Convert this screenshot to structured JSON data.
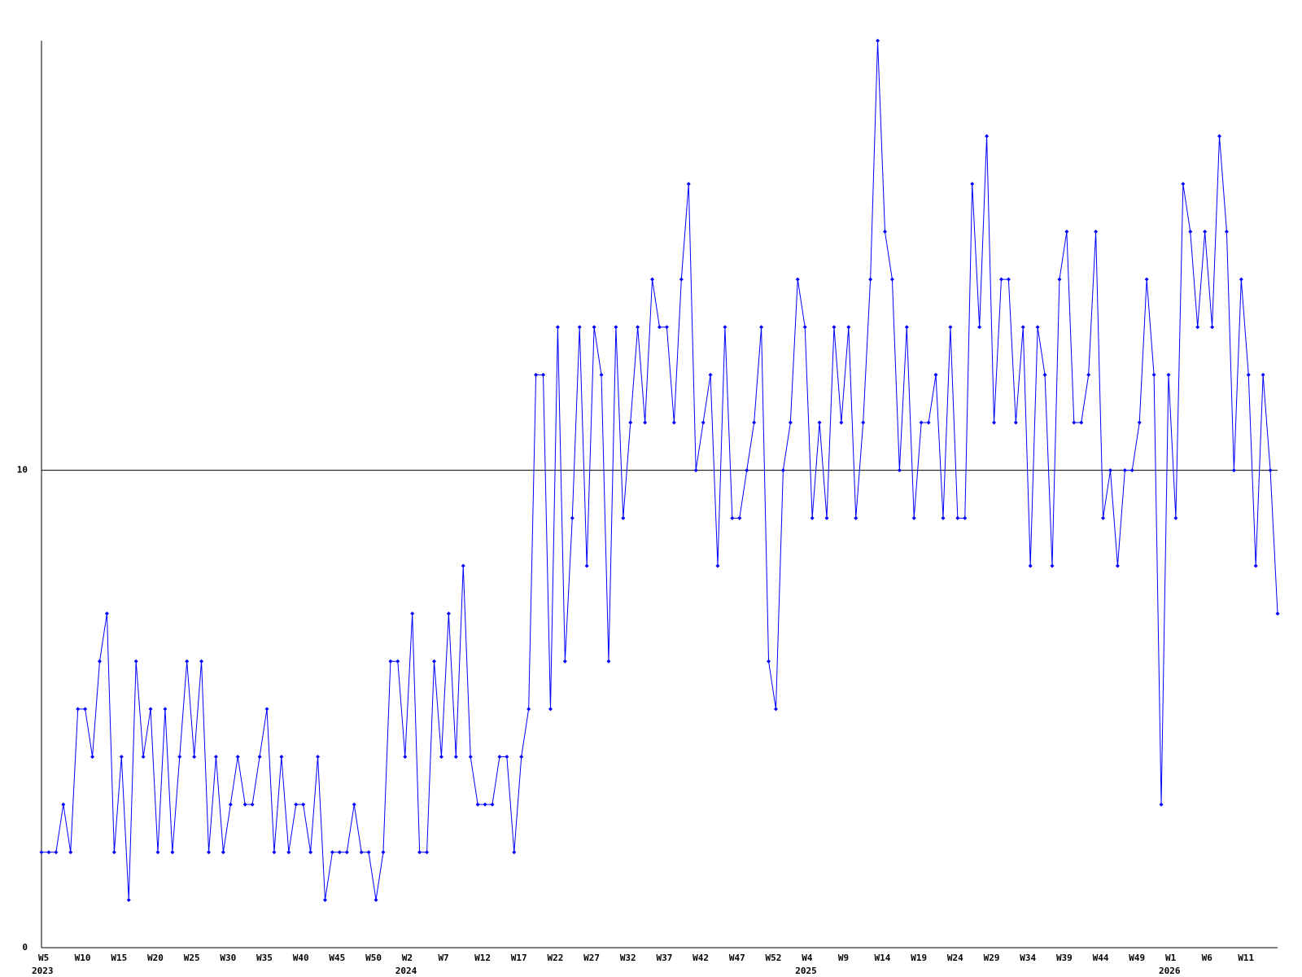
{
  "chart_data": {
    "type": "line",
    "categories": [
      "W5",
      null,
      null,
      null,
      null,
      "W10",
      null,
      null,
      null,
      null,
      "W15",
      null,
      null,
      null,
      null,
      "W20",
      null,
      null,
      null,
      null,
      "W25",
      null,
      null,
      null,
      null,
      "W30",
      null,
      null,
      null,
      null,
      "W35",
      null,
      null,
      null,
      null,
      "W40",
      null,
      null,
      null,
      null,
      "W45",
      null,
      null,
      null,
      null,
      "W50",
      null,
      null,
      null,
      null,
      "W2",
      null,
      null,
      null,
      null,
      "W7",
      null,
      null,
      null,
      null,
      "W12",
      null,
      null,
      null,
      null,
      "W17",
      null,
      null,
      null,
      null,
      "W22",
      null,
      null,
      null,
      null,
      "W27",
      null,
      null,
      null,
      null,
      "W32",
      null,
      null,
      null,
      null,
      "W37",
      null,
      null,
      null,
      null,
      "W42",
      null,
      null,
      null,
      null,
      "W47",
      null,
      null,
      null,
      null,
      "W52",
      null,
      null,
      null,
      null,
      "W4",
      null,
      null,
      null,
      null,
      "W9",
      null,
      null,
      null,
      null,
      "W14",
      null,
      null,
      null,
      null,
      "W19",
      null,
      null,
      null,
      null,
      "W24",
      null,
      null,
      null,
      null,
      "W29",
      null,
      null,
      null,
      null,
      "W34",
      null,
      null,
      null,
      null,
      "W39",
      null,
      null,
      null,
      null,
      "W44",
      null,
      null,
      null,
      null,
      "W49",
      null,
      null,
      null,
      null,
      "W1",
      null,
      null,
      null,
      null,
      "W6",
      null,
      null,
      null,
      null,
      "W11",
      null,
      null,
      null,
      null,
      null
    ],
    "category_years": [
      "2023",
      null,
      null,
      null,
      null,
      null,
      null,
      null,
      null,
      null,
      null,
      null,
      null,
      null,
      null,
      null,
      null,
      null,
      null,
      null,
      null,
      null,
      null,
      null,
      null,
      null,
      null,
      null,
      null,
      null,
      null,
      null,
      null,
      null,
      null,
      null,
      null,
      null,
      null,
      null,
      null,
      null,
      null,
      null,
      null,
      null,
      null,
      null,
      null,
      null,
      "2024",
      null,
      null,
      null,
      null,
      null,
      null,
      null,
      null,
      null,
      null,
      null,
      null,
      null,
      null,
      null,
      null,
      null,
      null,
      null,
      null,
      null,
      null,
      null,
      null,
      null,
      null,
      null,
      null,
      null,
      null,
      null,
      null,
      null,
      null,
      null,
      null,
      null,
      null,
      null,
      null,
      null,
      null,
      null,
      null,
      null,
      null,
      null,
      null,
      null,
      null,
      null,
      null,
      null,
      null,
      "2025",
      null,
      null,
      null,
      null,
      null,
      null,
      null,
      null,
      null,
      null,
      null,
      null,
      null,
      null,
      null,
      null,
      null,
      null,
      null,
      null,
      null,
      null,
      null,
      null,
      null,
      null,
      null,
      null,
      null,
      null,
      null,
      null,
      null,
      null,
      null,
      null,
      null,
      null,
      null,
      null,
      null,
      null,
      null,
      null,
      null,
      null,
      null,
      null,
      null,
      "2026",
      null,
      null,
      null,
      null,
      null,
      null,
      null,
      null,
      null,
      null,
      null,
      null,
      null,
      null,
      null
    ],
    "series": [
      {
        "color": "#0000ff",
        "values": [
          2,
          2,
          2,
          3,
          2,
          5,
          5,
          4,
          6,
          7,
          2,
          4,
          1,
          6,
          4,
          5,
          2,
          5,
          2,
          4,
          6,
          4,
          6,
          2,
          4,
          2,
          3,
          4,
          3,
          3,
          4,
          5,
          2,
          4,
          2,
          3,
          3,
          2,
          4,
          1,
          2,
          2,
          2,
          3,
          2,
          2,
          1,
          2,
          6,
          6,
          4,
          7,
          2,
          2,
          6,
          4,
          7,
          4,
          8,
          4,
          3,
          3,
          3,
          4,
          4,
          2,
          4,
          5,
          12,
          12,
          5,
          13,
          6,
          9,
          13,
          8,
          13,
          12,
          6,
          13,
          9,
          11,
          13,
          11,
          14,
          13,
          13,
          11,
          14,
          16,
          10,
          11,
          12,
          8,
          13,
          9,
          9,
          10,
          11,
          13,
          6,
          5,
          10,
          11,
          14,
          13,
          9,
          11,
          9,
          13,
          11,
          13,
          9,
          11,
          14,
          19,
          15,
          14,
          10,
          13,
          9,
          11,
          11,
          12,
          9,
          13,
          9,
          9,
          16,
          13,
          17,
          11,
          14,
          14,
          11,
          13,
          8,
          13,
          12,
          8,
          14,
          15,
          11,
          11,
          12,
          15,
          9,
          10,
          8,
          10,
          10,
          11,
          14,
          12,
          3,
          12,
          9,
          16,
          15,
          13,
          15,
          13,
          17,
          15,
          10,
          14,
          12,
          8,
          12,
          10,
          7
        ]
      }
    ],
    "ylim": [
      0,
      19
    ],
    "yticks": [
      0,
      10
    ],
    "grid": true
  }
}
